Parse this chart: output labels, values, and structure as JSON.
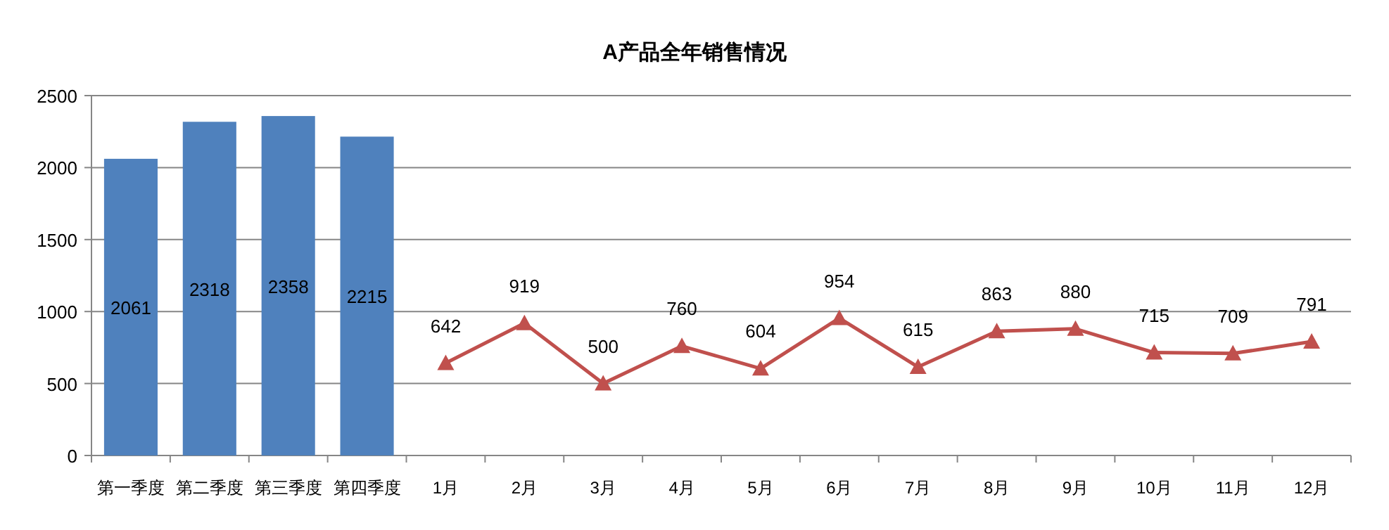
{
  "chart_data": {
    "type": "bar",
    "title": "A产品全年销售情况",
    "categories": [
      "第一季度",
      "第二季度",
      "第三季度",
      "第四季度",
      "1月",
      "2月",
      "3月",
      "4月",
      "5月",
      "6月",
      "7月",
      "8月",
      "9月",
      "10月",
      "11月",
      "12月"
    ],
    "series": [
      {
        "color": "#4f81bd",
        "values": [
          2061,
          2318,
          2358,
          2215,
          null,
          null,
          null,
          null,
          null,
          null,
          null,
          null,
          null,
          null,
          null,
          null
        ]
      },
      {
        "type": "line",
        "color": "#c0504d",
        "values": [
          null,
          null,
          null,
          null,
          642,
          919,
          500,
          760,
          604,
          954,
          615,
          863,
          880,
          715,
          709,
          791
        ]
      }
    ],
    "ylim": [
      0,
      2500
    ],
    "yticks": [
      0,
      500,
      1000,
      1500,
      2000,
      2500
    ],
    "grid": "y",
    "marker": "triangle",
    "data_labels": true
  }
}
